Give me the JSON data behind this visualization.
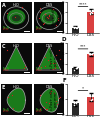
{
  "panels": [
    {
      "label": "B",
      "row_label": "A",
      "h2o_mean": 1.5,
      "h2o_sem": 0.4,
      "dss_mean": 6.2,
      "dss_sem": 0.7,
      "stars": "****",
      "ylabel": "c-Fos+ cells\nper mm²",
      "ylim": [
        0,
        9
      ],
      "yticks": [
        0,
        3,
        6,
        9
      ],
      "brain_shape": "oval_double",
      "title_left": "H₂O",
      "title_right": "DSS"
    },
    {
      "label": "D",
      "row_label": "C",
      "h2o_mean": 2.2,
      "h2o_sem": 0.6,
      "dss_mean": 7.8,
      "dss_sem": 0.8,
      "stars": "***",
      "ylabel": "c-Fos+ cells\nper mm²",
      "ylim": [
        0,
        12
      ],
      "yticks": [
        0,
        4,
        8,
        12
      ],
      "brain_shape": "triangle",
      "title_left": "H₂O",
      "title_right": "DSS"
    },
    {
      "label": "F",
      "row_label": "E",
      "h2o_mean": 3.8,
      "h2o_sem": 1.0,
      "dss_mean": 5.8,
      "dss_sem": 1.2,
      "stars": "*",
      "ylabel": "c-Fos+ cells\nper mm²",
      "ylim": [
        0,
        10
      ],
      "yticks": [
        0,
        5,
        10
      ],
      "brain_shape": "pear",
      "title_left": "H₂O",
      "title_right": "DSS"
    }
  ],
  "h2o_color": "#2a2a2a",
  "dss_color": "#d94040",
  "h2o_label": "H₂O",
  "dss_label": "DSS",
  "bg_color": "#ffffff",
  "micro_bg": "#0a0a0a",
  "green_color": "#22aa22",
  "red_dot_color": "#cc2222",
  "bar_width": 0.45
}
